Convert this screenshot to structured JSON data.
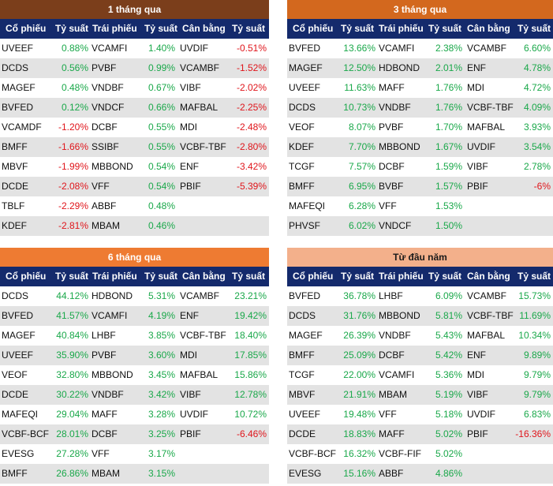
{
  "headers": [
    "Cổ phiếu",
    "Tỷ suất",
    "Trái phiếu",
    "Tỷ suất",
    "Cân bằng",
    "Tỷ suất"
  ],
  "colors": {
    "positive": "#1aa84a",
    "negative": "#e0151b",
    "header_bg": "#142a6c"
  },
  "panels": [
    {
      "title": "1 tháng qua",
      "title_color": "#7b3e1b",
      "rows": [
        [
          "UVEEF",
          "0.88%",
          "VCAMFI",
          "1.40%",
          "UVDIF",
          "-0.51%"
        ],
        [
          "DCDS",
          "0.56%",
          "PVBF",
          "0.99%",
          "VCAMBF",
          "-1.52%"
        ],
        [
          "MAGEF",
          "0.48%",
          "VNDBF",
          "0.67%",
          "VIBF",
          "-2.02%"
        ],
        [
          "BVFED",
          "0.12%",
          "VNDCF",
          "0.66%",
          "MAFBAL",
          "-2.25%"
        ],
        [
          "VCAMDF",
          "-1.20%",
          "DCBF",
          "0.55%",
          "MDI",
          "-2.48%"
        ],
        [
          "BMFF",
          "-1.66%",
          "SSIBF",
          "0.55%",
          "VCBF-TBF",
          "-2.80%"
        ],
        [
          "MBVF",
          "-1.99%",
          "MBBOND",
          "0.54%",
          "ENF",
          "-3.42%"
        ],
        [
          "DCDE",
          "-2.08%",
          "VFF",
          "0.54%",
          "PBIF",
          "-5.39%"
        ],
        [
          "TBLF",
          "-2.29%",
          "ABBF",
          "0.48%",
          "",
          ""
        ],
        [
          "KDEF",
          "-2.81%",
          "MBAM",
          "0.46%",
          "",
          ""
        ]
      ]
    },
    {
      "title": "3 tháng qua",
      "title_color": "#d3681e",
      "rows": [
        [
          "BVFED",
          "13.66%",
          "VCAMFI",
          "2.38%",
          "VCAMBF",
          "6.60%"
        ],
        [
          "MAGEF",
          "12.50%",
          "HDBOND",
          "2.01%",
          "ENF",
          "4.78%"
        ],
        [
          "UVEEF",
          "11.63%",
          "MAFF",
          "1.76%",
          "MDI",
          "4.72%"
        ],
        [
          "DCDS",
          "10.73%",
          "VNDBF",
          "1.76%",
          "VCBF-TBF",
          "4.09%"
        ],
        [
          "VEOF",
          "8.07%",
          "PVBF",
          "1.70%",
          "MAFBAL",
          "3.93%"
        ],
        [
          "KDEF",
          "7.70%",
          "MBBOND",
          "1.67%",
          "UVDIF",
          "3.54%"
        ],
        [
          "TCGF",
          "7.57%",
          "DCBF",
          "1.59%",
          "VIBF",
          "2.78%"
        ],
        [
          "BMFF",
          "6.95%",
          "BVBF",
          "1.57%",
          "PBIF",
          "-6%"
        ],
        [
          "MAFEQI",
          "6.28%",
          "VFF",
          "1.53%",
          "",
          ""
        ],
        [
          "PHVSF",
          "6.02%",
          "VNDCF",
          "1.50%",
          "",
          ""
        ]
      ]
    },
    {
      "title": "6 tháng qua",
      "title_color": "#ee7b32",
      "rows": [
        [
          "DCDS",
          "44.12%",
          "HDBOND",
          "5.31%",
          "VCAMBF",
          "23.21%"
        ],
        [
          "BVFED",
          "41.57%",
          "VCAMFI",
          "4.19%",
          "ENF",
          "19.42%"
        ],
        [
          "MAGEF",
          "40.84%",
          "LHBF",
          "3.85%",
          "VCBF-TBF",
          "18.40%"
        ],
        [
          "UVEEF",
          "35.90%",
          "PVBF",
          "3.60%",
          "MDI",
          "17.85%"
        ],
        [
          "VEOF",
          "32.80%",
          "MBBOND",
          "3.45%",
          "MAFBAL",
          "15.86%"
        ],
        [
          "DCDE",
          "30.22%",
          "VNDBF",
          "3.42%",
          "VIBF",
          "12.78%"
        ],
        [
          "MAFEQI",
          "29.04%",
          "MAFF",
          "3.28%",
          "UVDIF",
          "10.72%"
        ],
        [
          "VCBF-BCF",
          "28.01%",
          "DCBF",
          "3.25%",
          "PBIF",
          "-6.46%"
        ],
        [
          "EVESG",
          "27.28%",
          "VFF",
          "3.17%",
          "",
          ""
        ],
        [
          "BMFF",
          "26.86%",
          "MBAM",
          "3.15%",
          "",
          ""
        ]
      ]
    },
    {
      "title": "Từ đầu năm",
      "title_color": "#f3b08b",
      "title_text_color": "#1a1a1a",
      "rows": [
        [
          "BVFED",
          "36.78%",
          "LHBF",
          "6.09%",
          "VCAMBF",
          "15.73%"
        ],
        [
          "DCDS",
          "31.76%",
          "MBBOND",
          "5.81%",
          "VCBF-TBF",
          "11.69%"
        ],
        [
          "MAGEF",
          "26.39%",
          "VNDBF",
          "5.43%",
          "MAFBAL",
          "10.34%"
        ],
        [
          "BMFF",
          "25.09%",
          "DCBF",
          "5.42%",
          "ENF",
          "9.89%"
        ],
        [
          "TCGF",
          "22.00%",
          "VCAMFI",
          "5.36%",
          "MDI",
          "9.79%"
        ],
        [
          "MBVF",
          "21.91%",
          "MBAM",
          "5.19%",
          "VIBF",
          "9.79%"
        ],
        [
          "UVEEF",
          "19.48%",
          "VFF",
          "5.18%",
          "UVDIF",
          "6.83%"
        ],
        [
          "DCDE",
          "18.83%",
          "MAFF",
          "5.02%",
          "PBIF",
          "-16.36%"
        ],
        [
          "VCBF-BCF",
          "16.32%",
          "VCBF-FIF",
          "5.02%",
          "",
          ""
        ],
        [
          "EVESG",
          "15.16%",
          "ABBF",
          "4.86%",
          "",
          ""
        ]
      ]
    }
  ]
}
